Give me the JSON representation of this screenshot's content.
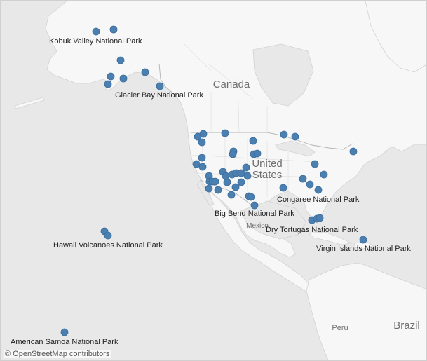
{
  "map": {
    "attribution": "© OpenStreetMap contributors",
    "colors": {
      "marker": "#4a7fb0",
      "marker_stroke": "#3b6d9c",
      "land": "#f5f5f5",
      "water": "#e7e7e7",
      "border": "#b9b9b9"
    },
    "countries": [
      {
        "id": "canada",
        "label": "Canada",
        "icon": ""
      },
      {
        "id": "united-states",
        "label": "United\nStates"
      },
      {
        "id": "mexico",
        "label": "Mexico"
      },
      {
        "id": "peru",
        "label": "Peru"
      },
      {
        "id": "brazil",
        "label": "Brazil"
      }
    ],
    "labeled_parks": [
      "Kobuk Valley National Park",
      "Glacier Bay National Park",
      "Congaree National Park",
      "Big Bend National Park",
      "Dry Tortugas National Park",
      "Virgin Islands National Park",
      "Hawaii Volcanoes National Park",
      "American Samoa National Park"
    ],
    "marker_count": 59,
    "marker_icon": "circle-marker"
  }
}
